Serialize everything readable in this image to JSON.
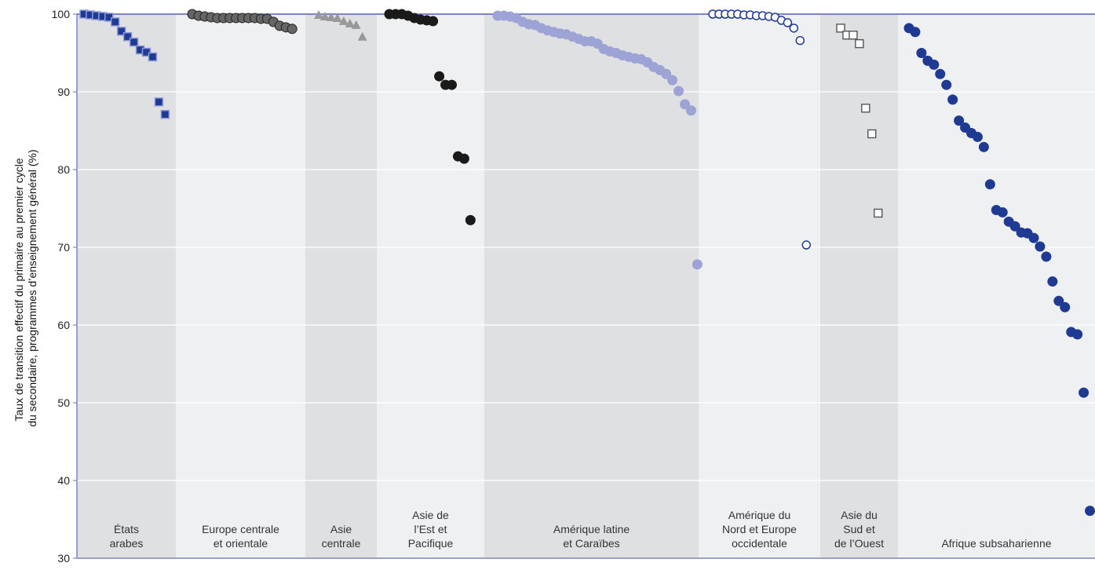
{
  "chart_data": {
    "type": "scatter",
    "title": "",
    "xlabel": "",
    "ylabel": [
      "Taux de transition effectif du primaire au premier cycle",
      "du secondaire, programmes d’enseignement général (%)"
    ],
    "ylim": [
      30,
      100
    ],
    "yticks": [
      30,
      40,
      50,
      60,
      70,
      80,
      90,
      100
    ],
    "grid": true,
    "legend": "none",
    "colors": {
      "band_dark": "#dfe0e2",
      "band_light": "#eff0f2",
      "gridline": "#ffffff",
      "axis": "#7d85c0"
    },
    "series": [
      {
        "region_lines": [
          "États",
          "arabes"
        ],
        "marker": "square",
        "fill": "#1f3a93",
        "stroke": "#8f9bd6",
        "values": [
          100,
          99.9,
          99.8,
          99.7,
          99.6,
          99.0,
          97.8,
          97.1,
          96.4,
          95.4,
          95.1,
          94.5,
          88.7,
          87.1
        ]
      },
      {
        "region_lines": [
          "Europe centrale",
          "et orientale"
        ],
        "marker": "circle",
        "fill": "#666666",
        "stroke": "#222222",
        "values": [
          100,
          99.8,
          99.7,
          99.6,
          99.5,
          99.5,
          99.5,
          99.5,
          99.5,
          99.5,
          99.5,
          99.4,
          99.4,
          99.0,
          98.5,
          98.3,
          98.1
        ]
      },
      {
        "region_lines": [
          "Asie",
          "centrale"
        ],
        "marker": "triangle",
        "fill": "#999999",
        "stroke": "#999999",
        "values": [
          99.9,
          99.7,
          99.6,
          99.5,
          99.1,
          98.8,
          98.6,
          97.1
        ]
      },
      {
        "region_lines": [
          "Asie de",
          "l’Est et",
          "Pacifique"
        ],
        "marker": "circle",
        "fill": "#1a1a1a",
        "stroke": "#1a1a1a",
        "values": [
          100,
          100,
          100,
          99.8,
          99.5,
          99.3,
          99.2,
          99.1,
          92.0,
          90.9,
          90.9,
          81.7,
          81.4,
          73.5
        ]
      },
      {
        "region_lines": [
          "Amérique latine",
          "et Caraïbes"
        ],
        "marker": "circle",
        "fill": "#9ea3d6",
        "stroke": "#9ea3d6",
        "values": [
          99.8,
          99.8,
          99.7,
          99.5,
          99.0,
          98.7,
          98.6,
          98.2,
          97.9,
          97.7,
          97.5,
          97.4,
          97.1,
          96.8,
          96.5,
          96.5,
          96.2,
          95.5,
          95.2,
          95.0,
          94.7,
          94.5,
          94.3,
          94.2,
          93.8,
          93.2,
          92.8,
          92.3,
          91.5,
          90.1,
          88.4,
          87.6,
          67.8
        ]
      },
      {
        "region_lines": [
          "Amérique du",
          "Nord et Europe",
          "occidentale"
        ],
        "marker": "circle-open",
        "fill": "#ffffff",
        "stroke": "#1f3a93",
        "values": [
          100,
          100,
          100,
          100,
          100,
          99.9,
          99.9,
          99.8,
          99.8,
          99.7,
          99.6,
          99.2,
          98.9,
          98.2,
          96.6,
          70.3
        ]
      },
      {
        "region_lines": [
          "Asie du",
          "Sud et",
          "de l’Ouest"
        ],
        "marker": "square-open",
        "fill": "#ffffff",
        "stroke": "#555555",
        "values": [
          98.2,
          97.3,
          97.3,
          96.2,
          87.9,
          84.6,
          74.4
        ]
      },
      {
        "region_lines": [
          "Afrique subsaharienne"
        ],
        "marker": "circle",
        "fill": "#1f3a93",
        "stroke": "#1f3a93",
        "values": [
          98.2,
          97.7,
          95.0,
          94.0,
          93.5,
          92.3,
          90.9,
          89.0,
          86.3,
          85.4,
          84.7,
          84.2,
          82.9,
          78.1,
          74.8,
          74.5,
          73.3,
          72.7,
          71.9,
          71.8,
          71.2,
          70.1,
          68.8,
          65.6,
          63.1,
          62.3,
          59.1,
          58.8,
          51.3,
          36.1
        ]
      }
    ]
  }
}
